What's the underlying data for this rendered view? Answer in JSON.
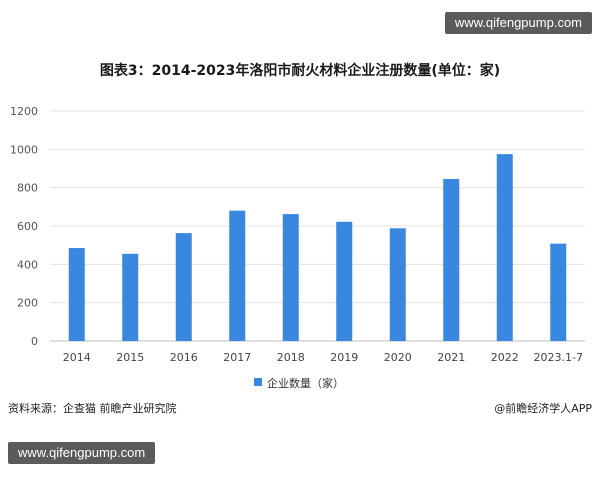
{
  "watermark": "www.qifengpump.com",
  "chart_data": {
    "type": "bar",
    "title": "图表3：2014-2023年洛阳市耐火材料企业注册数量(单位：家)",
    "categories": [
      "2014",
      "2015",
      "2016",
      "2017",
      "2018",
      "2019",
      "2020",
      "2021",
      "2022",
      "2023.1-7"
    ],
    "series": [
      {
        "name": "企业数量（家）",
        "values": [
          485,
          455,
          563,
          680,
          662,
          622,
          588,
          845,
          975,
          508
        ],
        "color": "#3a87e0"
      }
    ],
    "ylim": [
      0,
      1200
    ],
    "yticks": [
      "0",
      "200",
      "400",
      "600",
      "800",
      "1000",
      "1200"
    ],
    "grid": true,
    "legend_position": "bottom-center",
    "xlabel": "",
    "ylabel": ""
  },
  "footer": {
    "source": "资料来源：企查猫 前瞻产业研究院",
    "credit": "@前瞻经济学人APP"
  }
}
